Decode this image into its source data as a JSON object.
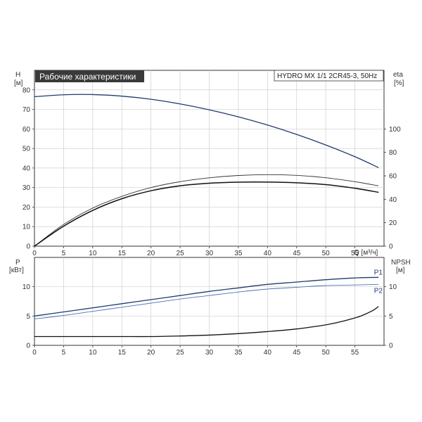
{
  "header": {
    "title": "Рабочие характеристики",
    "model": "HYDRO MX 1/1 2CR45-3, 50Hz"
  },
  "chart_data": [
    {
      "type": "line",
      "panel": "top",
      "xlabel": "Q [м³/ч]",
      "xlim": [
        0,
        60
      ],
      "xticks": [
        0,
        5,
        10,
        15,
        20,
        25,
        30,
        35,
        40,
        45,
        50,
        55
      ],
      "left_axis": {
        "label_line1": "H",
        "label_line2": "[м]",
        "lim": [
          0,
          90
        ],
        "ticks": [
          0,
          10,
          20,
          30,
          40,
          50,
          60,
          70,
          80
        ]
      },
      "right_axis": {
        "label_line1": "eta",
        "label_line2": "[%]",
        "lim": [
          0,
          150
        ],
        "ticks": [
          0,
          20,
          40,
          60,
          80,
          100
        ]
      },
      "grid": true,
      "series": [
        {
          "axis": "left",
          "color": "#1f3c6e",
          "width": 1.3,
          "x": [
            0,
            5,
            10,
            15,
            20,
            25,
            30,
            35,
            40,
            45,
            50,
            55,
            59
          ],
          "y": [
            76.5,
            77.5,
            77.6,
            76.8,
            75.2,
            72.8,
            69.8,
            66.2,
            62.0,
            57.2,
            51.8,
            45.8,
            40.3
          ]
        },
        {
          "axis": "right",
          "color": "#333333",
          "width": 0.9,
          "x": [
            0,
            5,
            10,
            15,
            20,
            25,
            30,
            35,
            40,
            45,
            50,
            55,
            59
          ],
          "y": [
            0,
            18.5,
            32.5,
            42.5,
            50.0,
            55.0,
            58.3,
            60.3,
            61.0,
            60.4,
            58.4,
            55.0,
            51.5
          ]
        },
        {
          "axis": "right",
          "color": "#111111",
          "width": 1.5,
          "x": [
            0,
            5,
            10,
            15,
            20,
            25,
            30,
            35,
            40,
            45,
            50,
            55,
            59
          ],
          "y": [
            0,
            17.0,
            30.5,
            40.5,
            47.3,
            51.5,
            53.7,
            54.6,
            54.7,
            54.1,
            52.5,
            49.4,
            46.0
          ]
        }
      ]
    },
    {
      "type": "line",
      "panel": "bottom",
      "xlim": [
        0,
        60
      ],
      "xticks": [
        0,
        5,
        10,
        15,
        20,
        25,
        30,
        35,
        40,
        45,
        50,
        55
      ],
      "left_axis": {
        "label_line1": "P",
        "label_line2": "[кВт]",
        "lim": [
          0,
          15
        ],
        "ticks": [
          0,
          5,
          10
        ]
      },
      "right_axis": {
        "label_line1": "NPSH",
        "label_line2": "[м]",
        "lim": [
          0,
          15
        ],
        "ticks": [
          0,
          5,
          10
        ]
      },
      "grid": true,
      "series": [
        {
          "name": "P1",
          "axis": "left",
          "color": "#1f3c6e",
          "width": 1.3,
          "x": [
            0,
            5,
            10,
            15,
            20,
            25,
            30,
            35,
            40,
            45,
            50,
            55,
            59
          ],
          "y": [
            5.0,
            5.7,
            6.4,
            7.1,
            7.8,
            8.5,
            9.2,
            9.8,
            10.4,
            10.8,
            11.2,
            11.5,
            11.6
          ]
        },
        {
          "name": "P2",
          "axis": "left",
          "color": "#4a74b4",
          "width": 0.9,
          "x": [
            0,
            5,
            10,
            15,
            20,
            25,
            30,
            35,
            40,
            45,
            50,
            55,
            59
          ],
          "y": [
            4.5,
            5.1,
            5.8,
            6.5,
            7.2,
            7.9,
            8.5,
            9.1,
            9.6,
            9.9,
            10.2,
            10.3,
            10.4
          ]
        },
        {
          "axis": "right",
          "color": "#111111",
          "width": 1.3,
          "x": [
            0,
            5,
            10,
            15,
            20,
            25,
            30,
            35,
            40,
            45,
            50,
            52,
            54,
            56,
            58,
            59
          ],
          "y": [
            1.5,
            1.5,
            1.5,
            1.5,
            1.5,
            1.6,
            1.75,
            2.0,
            2.35,
            2.8,
            3.5,
            3.9,
            4.4,
            5.0,
            5.9,
            6.6
          ]
        }
      ]
    }
  ]
}
